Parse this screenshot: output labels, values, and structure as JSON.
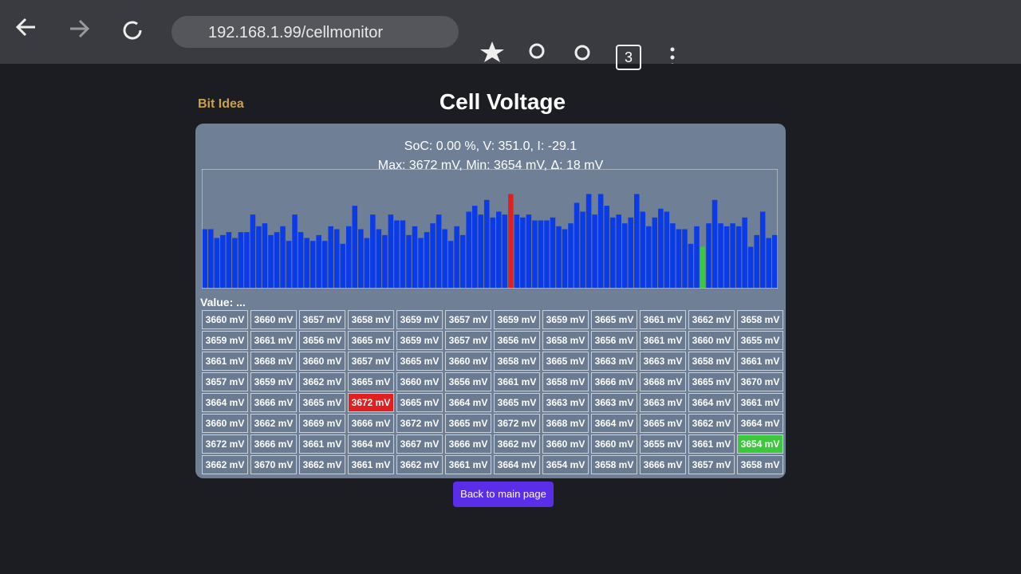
{
  "browser": {
    "url": "192.168.1.99/cellmonitor",
    "tab_count": 3
  },
  "logo": "Bit Idea",
  "title": "Cell Voltage",
  "summary": [
    "SoC: 0.00 %,  V: 351.0,  I: -29.1",
    "Max: 3672 mV, Min: 3654 mV, Δ: 18 mV"
  ],
  "chart_data": {
    "type": "bar",
    "values": [
      3660,
      3660,
      3657,
      3658,
      3659,
      3657,
      3659,
      3659,
      3665,
      3661,
      3662,
      3658,
      3659,
      3661,
      3656,
      3665,
      3659,
      3657,
      3656,
      3658,
      3656,
      3661,
      3660,
      3655,
      3661,
      3668,
      3660,
      3657,
      3665,
      3660,
      3658,
      3665,
      3663,
      3663,
      3658,
      3661,
      3657,
      3659,
      3662,
      3665,
      3660,
      3656,
      3661,
      3658,
      3666,
      3668,
      3665,
      3670,
      3664,
      3666,
      3665,
      3672,
      3665,
      3664,
      3665,
      3663,
      3663,
      3663,
      3664,
      3661,
      3660,
      3662,
      3669,
      3666,
      3672,
      3665,
      3672,
      3668,
      3664,
      3665,
      3662,
      3664,
      3672,
      3666,
      3661,
      3664,
      3667,
      3666,
      3662,
      3660,
      3660,
      3655,
      3661,
      3654,
      3662,
      3670,
      3662,
      3661,
      3662,
      3661,
      3664,
      3654,
      3658,
      3666,
      3657,
      3658
    ],
    "value_labels": [
      "3660 mV",
      "3660 mV",
      "3657 mV",
      "3658 mV",
      "3659 mV",
      "3657 mV",
      "3659 mV",
      "3659 mV",
      "3665 mV",
      "3661 mV",
      "3662 mV",
      "3658 mV",
      "3659 mV",
      "3661 mV",
      "3656 mV",
      "3665 mV",
      "3659 mV",
      "3657 mV",
      "3656 mV",
      "3658 mV",
      "3656 mV",
      "3661 mV",
      "3660 mV",
      "3655 mV",
      "3661 mV",
      "3668 mV",
      "3660 mV",
      "3657 mV",
      "3665 mV",
      "3660 mV",
      "3658 mV",
      "3665 mV",
      "3663 mV",
      "3663 mV",
      "3658 mV",
      "3661 mV",
      "3657 mV",
      "3659 mV",
      "3662 mV",
      "3665 mV",
      "3660 mV",
      "3656 mV",
      "3661 mV",
      "3658 mV",
      "3666 mV",
      "3668 mV",
      "3665 mV",
      "3670 mV",
      "3664 mV",
      "3666 mV",
      "3665 mV",
      "3672 mV",
      "3665 mV",
      "3664 mV",
      "3665 mV",
      "3663 mV",
      "3663 mV",
      "3663 mV",
      "3664 mV",
      "3661 mV",
      "3660 mV",
      "3662 mV",
      "3669 mV",
      "3666 mV",
      "3672 mV",
      "3665 mV",
      "3672 mV",
      "3668 mV",
      "3664 mV",
      "3665 mV",
      "3662 mV",
      "3664 mV",
      "3672 mV",
      "3666 mV",
      "3661 mV",
      "3664 mV",
      "3667 mV",
      "3666 mV",
      "3662 mV",
      "3660 mV",
      "3660 mV",
      "3655 mV",
      "3661 mV",
      "3654 mV",
      "3662 mV",
      "3670 mV",
      "3662 mV",
      "3661 mV",
      "3662 mV",
      "3661 mV",
      "3664 mV",
      "3654 mV",
      "3658 mV",
      "3666 mV",
      "3657 mV",
      "3658 mV"
    ],
    "ylim": [
      3640,
      3680
    ],
    "color": "#0b3be6",
    "max_color": "#e02020",
    "min_color": "#3cc83c"
  },
  "value_readout": "Value: ...",
  "button": "Back to main page"
}
